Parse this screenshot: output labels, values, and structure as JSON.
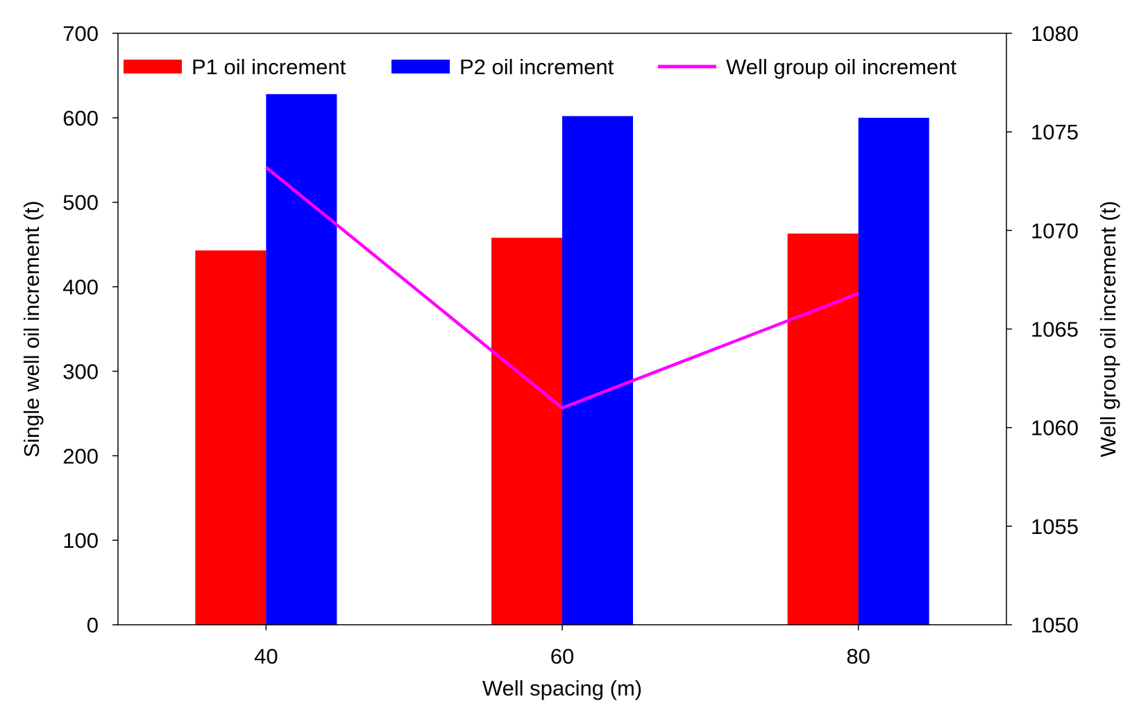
{
  "chart_data": {
    "type": "bar",
    "title": "",
    "categories": [
      "40",
      "60",
      "80"
    ],
    "xlabel": "Well spacing (m)",
    "ylabel": "Single well oil increment (t)",
    "y2label": "Well group oil increment (t)",
    "ylim": [
      0,
      700
    ],
    "y2lim": [
      1050,
      1080
    ],
    "yticks": [
      "0",
      "100",
      "200",
      "300",
      "400",
      "500",
      "600",
      "700"
    ],
    "y2ticks": [
      "1050",
      "1055",
      "1060",
      "1065",
      "1070",
      "1075",
      "1080"
    ],
    "grid": false,
    "legend_position": "top",
    "series": [
      {
        "name": "P1 oil increment",
        "type": "bar",
        "axis": "left",
        "color": "#ff0000",
        "values": [
          443,
          458,
          463
        ]
      },
      {
        "name": "P2 oil increment",
        "type": "bar",
        "axis": "left",
        "color": "#0000ff",
        "values": [
          628,
          602,
          600
        ]
      },
      {
        "name": "Well group oil increment",
        "type": "line",
        "axis": "right",
        "color": "#ff00ff",
        "values": [
          1073.2,
          1061.0,
          1066.8
        ]
      }
    ]
  }
}
